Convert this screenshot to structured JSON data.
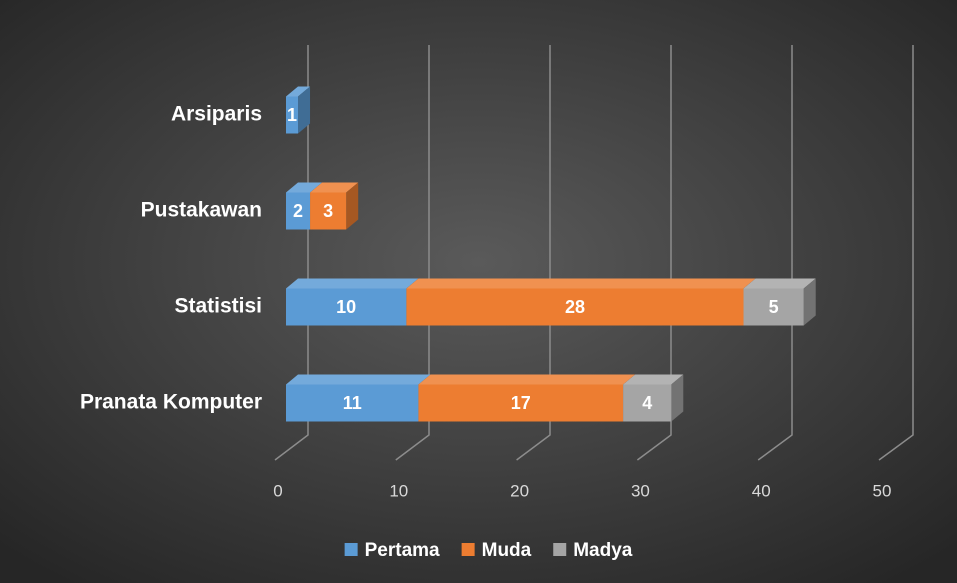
{
  "chart_data": {
    "type": "bar3d_stacked_horizontal",
    "categories": [
      "Pranata Komputer",
      "Statistisi",
      "Pustakawan",
      "Arsiparis"
    ],
    "series": [
      {
        "name": "Pertama",
        "color": "#5b9bd5",
        "values": [
          11,
          10,
          2,
          1
        ]
      },
      {
        "name": "Muda",
        "color": "#ed7d31",
        "values": [
          17,
          28,
          3,
          null
        ]
      },
      {
        "name": "Madya",
        "color": "#a5a5a5",
        "values": [
          4,
          5,
          null,
          null
        ]
      }
    ],
    "xlim": [
      0,
      50
    ],
    "xticks": [
      0,
      10,
      20,
      30,
      40,
      50
    ],
    "grid": true,
    "legend": "bottom"
  }
}
